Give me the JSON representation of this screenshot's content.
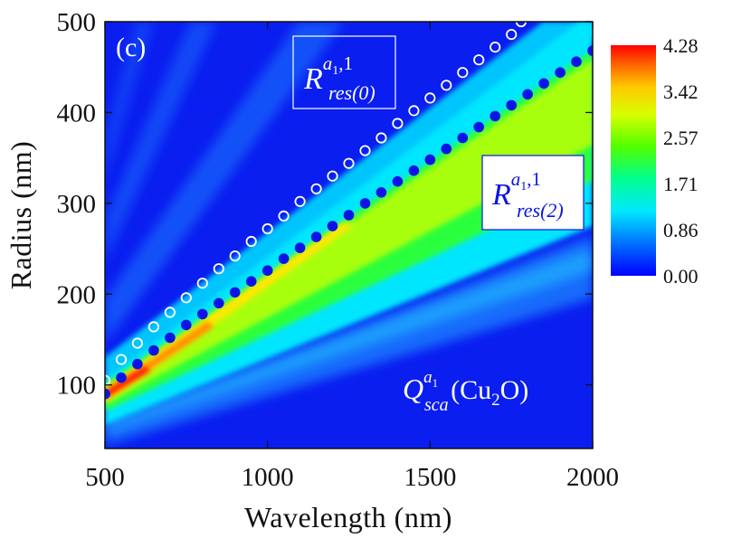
{
  "chart_data": {
    "type": "heatmap",
    "panel_label": "(c)",
    "xlabel": "Wavelength (nm)",
    "ylabel": "Radius (nm)",
    "xlim": [
      500,
      2000
    ],
    "ylim": [
      30,
      500
    ],
    "xticks": [
      "500",
      "1000",
      "1500",
      "2000"
    ],
    "yticks": [
      "100",
      "200",
      "300",
      "400",
      "500"
    ],
    "colorbar": {
      "min": 0.0,
      "max": 4.28,
      "ticks": [
        "4.28",
        "3.42",
        "2.57",
        "1.71",
        "0.86",
        "0.00"
      ],
      "colors": [
        "#0000ff",
        "#0070ff",
        "#00e8ff",
        "#00ff60",
        "#c8ff00",
        "#ffd200",
        "#ff6000",
        "#ff0000"
      ]
    },
    "series": [
      {
        "name": "R_res(0)^{a1,1}",
        "marker": "open-circle",
        "color": "#ffffff",
        "x": [
          500,
          550,
          600,
          650,
          700,
          750,
          800,
          850,
          900,
          950,
          1000,
          1050,
          1100,
          1150,
          1200,
          1250,
          1300,
          1350,
          1400,
          1450,
          1500,
          1550,
          1600,
          1650,
          1700,
          1750,
          1780
        ],
        "y": [
          105,
          128,
          146,
          164,
          180,
          196,
          212,
          228,
          242,
          258,
          272,
          286,
          302,
          316,
          330,
          344,
          358,
          372,
          388,
          402,
          416,
          430,
          444,
          458,
          472,
          486,
          500
        ]
      },
      {
        "name": "R_res(2)^{a1,1}",
        "marker": "filled-circle",
        "color": "#0a14e6",
        "x": [
          500,
          550,
          600,
          650,
          700,
          750,
          800,
          850,
          900,
          950,
          1000,
          1050,
          1100,
          1150,
          1200,
          1250,
          1300,
          1350,
          1400,
          1450,
          1500,
          1550,
          1600,
          1650,
          1700,
          1750,
          1800,
          1850,
          1900,
          1950,
          2000
        ],
        "y": [
          90,
          108,
          123,
          138,
          152,
          166,
          178,
          190,
          202,
          214,
          226,
          239,
          251,
          263,
          275,
          287,
          300,
          312,
          324,
          336,
          348,
          360,
          372,
          384,
          396,
          408,
          420,
          432,
          444,
          456,
          468
        ]
      }
    ],
    "annotations": {
      "res0": {
        "base": "R",
        "sup": "a",
        "sup_sub": "1",
        "sup_tail": ",1",
        "sub": "res(0)"
      },
      "res2": {
        "base": "R",
        "sup": "a",
        "sup_sub": "1",
        "sup_tail": ",1",
        "sub": "res(2)"
      },
      "qsca": {
        "base": "Q",
        "sup": "a",
        "sup_sub": "1",
        "sub": "sca",
        "material": "(Cu",
        "material_sub": "2",
        "material_tail": "O)"
      }
    }
  }
}
